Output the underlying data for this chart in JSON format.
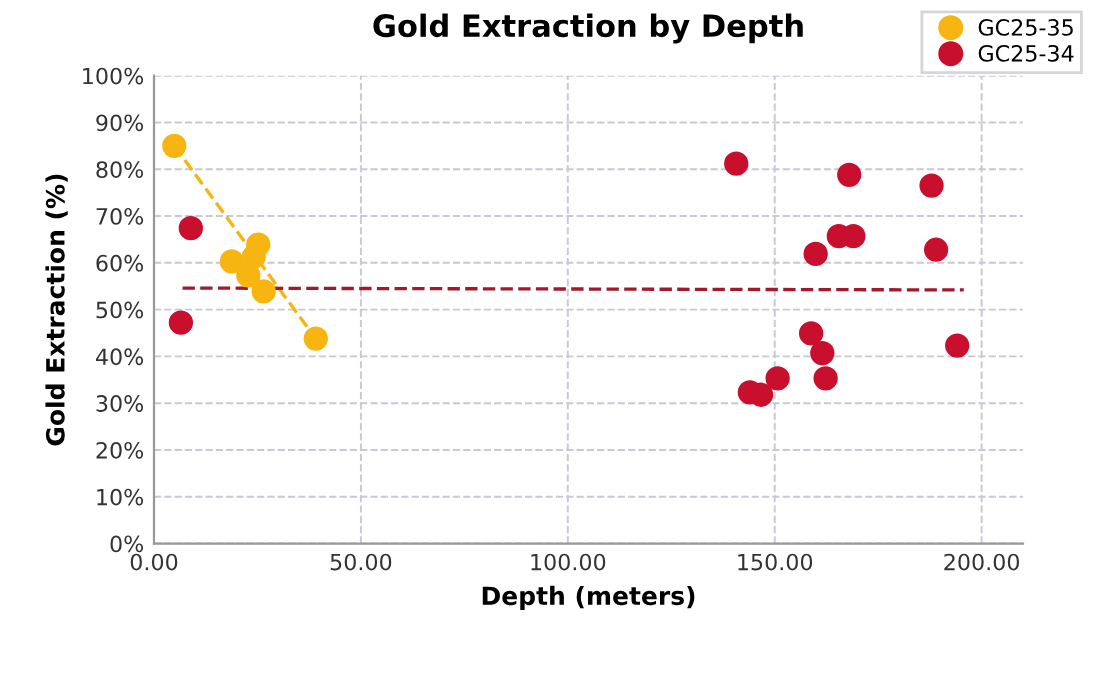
{
  "chart_data": {
    "type": "scatter",
    "title": "Gold Extraction by Depth",
    "xlabel": "Depth (meters)",
    "ylabel": "Gold Extraction (%)",
    "series": [
      {
        "name": "GC25-35",
        "color": "#f7b512",
        "x": [
          4.9,
          18.8,
          25.2,
          24.1,
          22.8,
          26.5,
          39.1
        ],
        "values": [
          85,
          60.3,
          63.9,
          61.3,
          57.3,
          53.9,
          43.8
        ]
      },
      {
        "name": "GC25-34",
        "color": "#c8102e",
        "x": [
          8.9,
          6.5,
          140.7,
          168,
          187.9,
          165.5,
          169,
          159.9,
          189,
          158.8,
          161.5,
          162.3,
          150.7,
          144,
          146.7,
          194.1
        ],
        "values": [
          67.4,
          47.2,
          81.2,
          78.8,
          76.5,
          65.7,
          65.7,
          61.9,
          62.8,
          44.9,
          40.7,
          35.3,
          35.3,
          32.3,
          31.8,
          42.3
        ]
      },
      {
        "type": "line",
        "color": "#f7b512",
        "line_style": "dashed",
        "marker": "none",
        "x": [
          4.9,
          39.1
        ],
        "values": [
          85,
          43.8
        ]
      },
      {
        "type": "line",
        "color": "#a3192b",
        "line_style": "dashed",
        "marker": "none",
        "x": [
          6.9,
          195.7
        ],
        "values": [
          54.6,
          54.2
        ]
      }
    ],
    "marker": "circle",
    "grid": true,
    "legend": "top right",
    "xlim": [
      0,
      210
    ],
    "xticks": [
      {
        "value": 0,
        "label": "0.00"
      },
      {
        "value": 50,
        "label": "50.00"
      },
      {
        "value": 100,
        "label": "100.00"
      },
      {
        "value": 150,
        "label": "150.00"
      },
      {
        "value": 200,
        "label": "200.00"
      }
    ],
    "ylim": [
      0,
      100
    ],
    "yticks": [
      {
        "value": 0,
        "label": "0%"
      },
      {
        "value": 10,
        "label": "10%"
      },
      {
        "value": 20,
        "label": "20%"
      },
      {
        "value": 30,
        "label": "30%"
      },
      {
        "value": 40,
        "label": "40%"
      },
      {
        "value": 50,
        "label": "50%"
      },
      {
        "value": 60,
        "label": "60%"
      },
      {
        "value": 70,
        "label": "70%"
      },
      {
        "value": 80,
        "label": "80%"
      },
      {
        "value": 90,
        "label": "90%"
      },
      {
        "value": 100,
        "label": "100%"
      }
    ]
  }
}
